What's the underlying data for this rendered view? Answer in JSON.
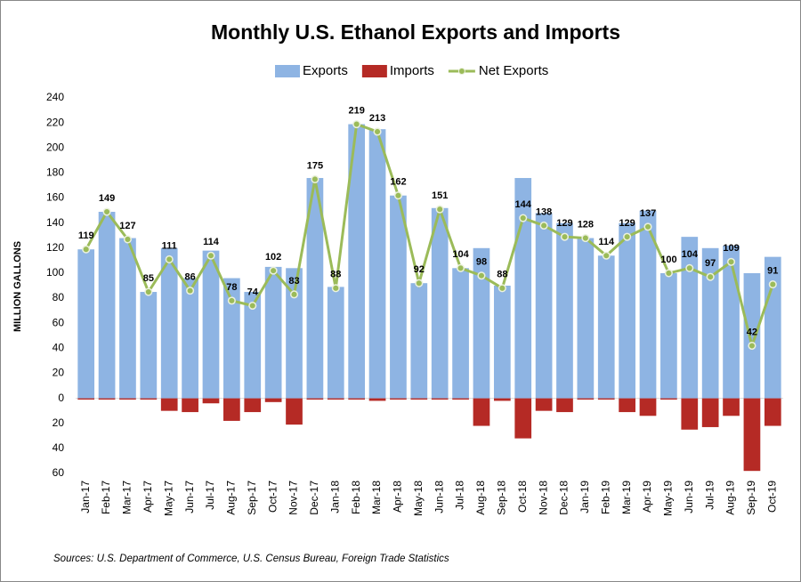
{
  "chart_data": {
    "type": "bar",
    "title": "Monthly U.S. Ethanol Exports and Imports",
    "y_label": "MILLION GALLONS",
    "source": "Sources: U.S. Department of Commerce, U.S. Census Bureau, Foreign Trade Statistics",
    "categories": [
      "Jan-17",
      "Feb-17",
      "Mar-17",
      "Apr-17",
      "May-17",
      "Jun-17",
      "Jul-17",
      "Aug-17",
      "Sep-17",
      "Oct-17",
      "Nov-17",
      "Dec-17",
      "Jan-18",
      "Feb-18",
      "Mar-18",
      "Apr-18",
      "May-18",
      "Jun-18",
      "Jul-18",
      "Aug-18",
      "Sep-18",
      "Oct-18",
      "Nov-18",
      "Dec-18",
      "Jan-19",
      "Feb-19",
      "Mar-19",
      "Apr-19",
      "May-19",
      "Jun-19",
      "Jul-19",
      "Aug-19",
      "Sep-19",
      "Oct-19"
    ],
    "series": [
      {
        "name": "Exports",
        "type": "bar",
        "color": "#8eb4e3",
        "values": [
          119,
          149,
          128,
          85,
          120,
          96,
          118,
          96,
          85,
          105,
          104,
          176,
          89,
          219,
          215,
          162,
          92,
          152,
          104,
          120,
          90,
          176,
          148,
          140,
          128,
          114,
          140,
          150,
          100,
          129,
          120,
          122,
          100,
          113
        ]
      },
      {
        "name": "Imports",
        "type": "bar",
        "color": "#b52a25",
        "values": [
          -1,
          -1,
          -1,
          -1,
          -10,
          -11,
          -4,
          -18,
          -11,
          -3,
          -21,
          -1,
          -1,
          -1,
          -2,
          -1,
          -1,
          -1,
          -1,
          -22,
          -2,
          -32,
          -10,
          -11,
          -1,
          -1,
          -11,
          -14,
          -1,
          -25,
          -23,
          -14,
          -58,
          -22
        ]
      },
      {
        "name": "Net Exports",
        "type": "line",
        "color": "#9bbb59",
        "values": [
          119,
          149,
          127,
          85,
          111,
          86,
          114,
          78,
          74,
          102,
          83,
          175,
          88,
          219,
          213,
          162,
          92,
          151,
          104,
          98,
          88,
          144,
          138,
          129,
          128,
          114,
          129,
          137,
          100,
          104,
          97,
          109,
          42,
          91
        ]
      }
    ],
    "ylim": [
      -60,
      240
    ],
    "yticks": [
      {
        "value": -60,
        "label": "60"
      },
      {
        "value": -40,
        "label": "40"
      },
      {
        "value": -20,
        "label": "20"
      },
      0,
      20,
      40,
      60,
      80,
      100,
      120,
      140,
      160,
      180,
      200,
      220,
      240
    ]
  }
}
